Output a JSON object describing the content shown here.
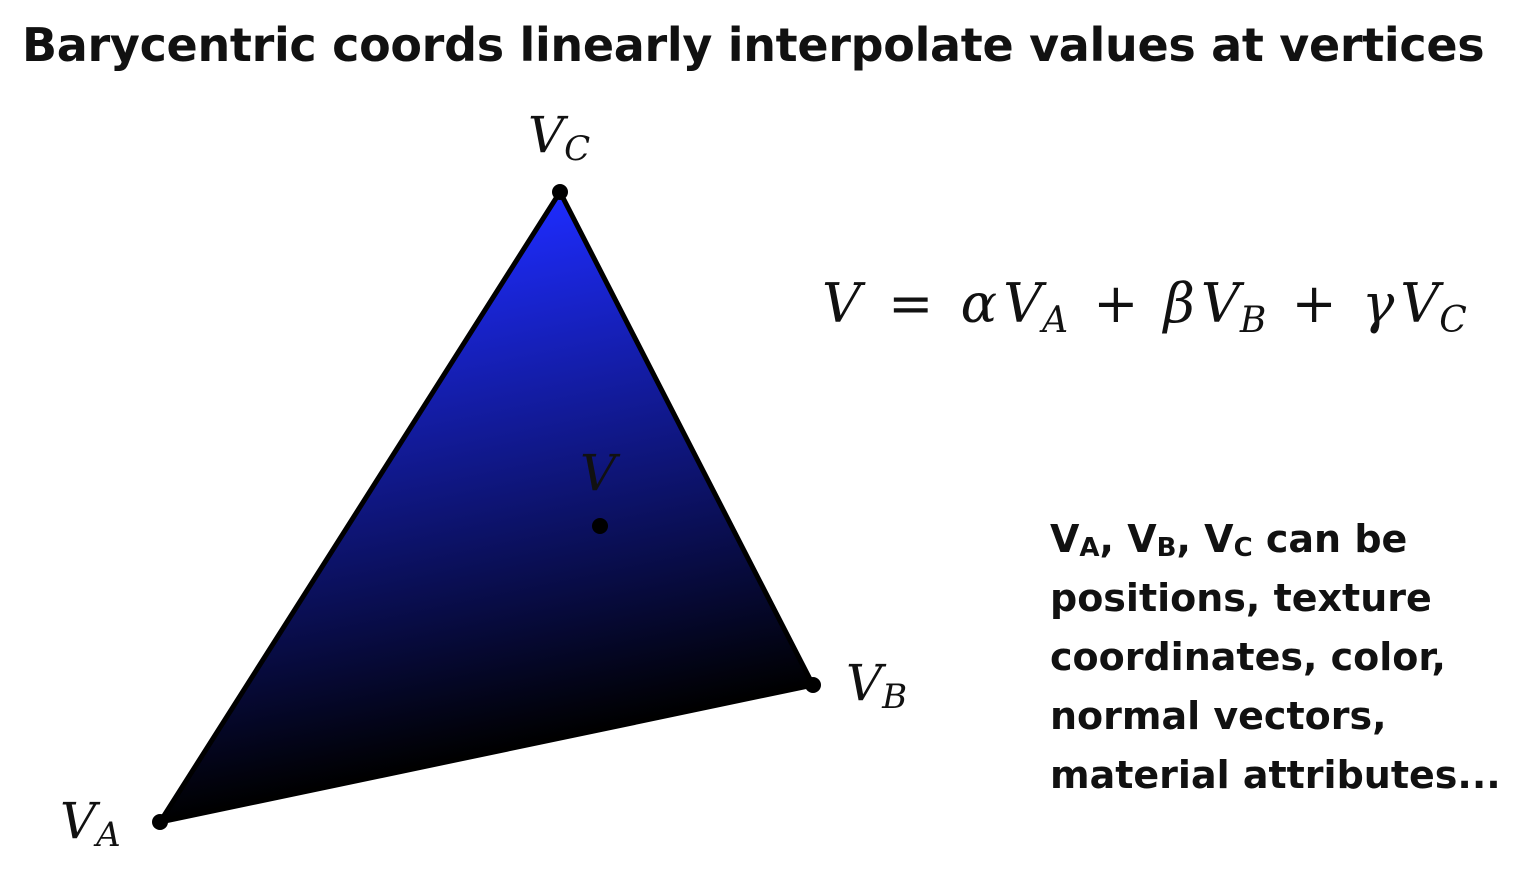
{
  "slide": {
    "title": "Barycentric coords linearly interpolate values at vertices"
  },
  "diagram": {
    "vertices": {
      "A": {
        "base": "V",
        "sub": "A",
        "color": "#ff3020"
      },
      "B": {
        "base": "V",
        "sub": "B",
        "color": "#80ff50"
      },
      "C": {
        "base": "V",
        "sub": "C",
        "color": "#1e2cff"
      }
    },
    "point_label": "V",
    "equation": {
      "lhs": "V",
      "eq": "=",
      "alpha": "α",
      "beta": "β",
      "gamma": "γ",
      "plus": "+",
      "base": "V",
      "sub_a": "A",
      "sub_b": "B",
      "sub_c": "C"
    }
  },
  "note": {
    "v": "V",
    "sub_a": "A",
    "sub_b": "B",
    "sub_c": "C",
    "sep": ", ",
    "line1_tail": " can be",
    "line2": "positions, texture",
    "line3": "coordinates, color,",
    "line4": "normal vectors,",
    "line5": "material attributes..."
  }
}
